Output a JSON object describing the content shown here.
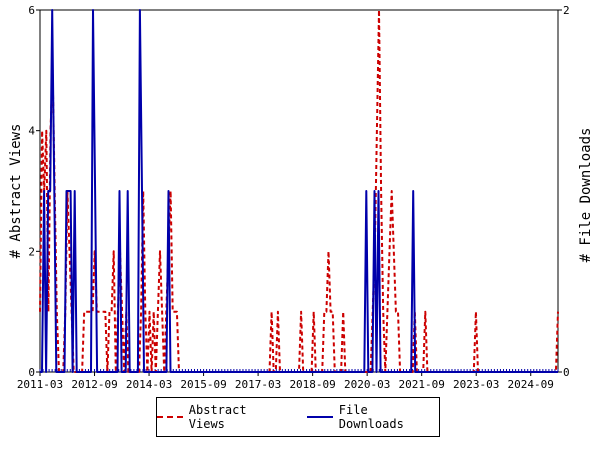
{
  "chart_data": {
    "type": "line",
    "x_tick_labels": [
      "2011-03",
      "2012-09",
      "2014-03",
      "2015-09",
      "2017-03",
      "2018-09",
      "2020-03",
      "2021-09",
      "2023-03",
      "2024-09"
    ],
    "y_left": {
      "label": "# Abstract Views",
      "range": [
        0,
        6
      ],
      "ticks": [
        "0",
        "2",
        "4",
        "6"
      ]
    },
    "y_right": {
      "label": "# File Downloads",
      "range": [
        0,
        2
      ],
      "ticks": [
        "0",
        "2"
      ]
    },
    "x_range_months": [
      "2011-03",
      "2025-06"
    ],
    "series": [
      {
        "name": "Abstract Views",
        "color": "#cc0000",
        "style": "dashed",
        "axis": "left",
        "values": [
          1,
          4,
          3,
          4,
          1,
          4,
          5,
          3,
          1,
          0,
          0,
          0,
          1,
          3,
          2,
          1,
          0,
          0,
          0,
          0,
          0,
          1,
          1,
          1,
          1,
          1,
          2,
          1,
          1,
          1,
          1,
          1,
          0,
          1,
          1,
          2,
          0,
          1,
          2,
          1,
          0,
          1,
          0,
          0,
          0,
          0,
          0,
          0,
          1,
          3,
          1,
          0,
          1,
          0,
          1,
          0,
          1,
          2,
          1,
          0,
          1,
          2,
          3,
          1,
          1,
          1,
          0,
          0,
          0,
          0,
          0,
          0,
          0,
          0,
          0,
          0,
          0,
          0,
          0,
          0,
          0,
          0,
          0,
          0,
          0,
          0,
          0,
          0,
          0,
          0,
          0,
          0,
          0,
          0,
          0,
          0,
          0,
          0,
          0,
          0,
          0,
          0,
          0,
          0,
          0,
          0,
          0,
          0,
          0,
          0,
          1,
          0,
          0,
          1,
          0,
          0,
          0,
          0,
          0,
          0,
          0,
          0,
          0,
          0,
          1,
          0,
          0,
          0,
          0,
          0,
          1,
          0,
          0,
          0,
          0,
          1,
          1,
          2,
          1,
          1,
          0,
          0,
          0,
          0,
          1,
          0,
          0,
          0,
          0,
          0,
          0,
          0,
          0,
          0,
          0,
          0,
          0,
          0,
          1,
          2,
          4,
          6,
          3,
          1,
          0,
          1,
          2,
          3,
          2,
          1,
          1,
          0,
          0,
          0,
          0,
          0,
          0,
          0,
          1,
          0,
          0,
          0,
          0,
          1,
          0,
          0,
          0,
          0,
          0,
          0,
          0,
          0,
          0,
          0,
          0,
          0,
          0,
          0,
          0,
          0,
          0,
          0,
          0,
          0,
          0,
          0,
          0,
          1,
          0,
          0,
          0,
          0,
          0,
          0,
          0,
          0,
          0,
          0,
          0,
          0,
          0,
          0,
          0,
          0,
          0,
          0,
          0,
          0,
          0,
          0,
          0,
          0,
          0,
          0,
          0,
          0,
          0,
          0,
          0,
          0,
          0,
          0,
          0,
          0,
          0,
          0,
          1
        ]
      },
      {
        "name": "File Downloads",
        "color": "#0000aa",
        "style": "solid",
        "axis": "right",
        "values": [
          0,
          0,
          1,
          0,
          1,
          1,
          2,
          1,
          0,
          0,
          0,
          0,
          0,
          1,
          1,
          1,
          0,
          1,
          0,
          0,
          0,
          0,
          0,
          0,
          0,
          0,
          2,
          1,
          0,
          0,
          0,
          0,
          0,
          0,
          0,
          0,
          0,
          0,
          0,
          1,
          0,
          0,
          0,
          1,
          0,
          0,
          0,
          0,
          0,
          2,
          1,
          0,
          0,
          0,
          0,
          0,
          0,
          0,
          0,
          0,
          0,
          0,
          0,
          1,
          0,
          0,
          0,
          0,
          0,
          0,
          0,
          0,
          0,
          0,
          0,
          0,
          0,
          0,
          0,
          0,
          0,
          0,
          0,
          0,
          0,
          0,
          0,
          0,
          0,
          0,
          0,
          0,
          0,
          0,
          0,
          0,
          0,
          0,
          0,
          0,
          0,
          0,
          0,
          0,
          0,
          0,
          0,
          0,
          0,
          0,
          0,
          0,
          0,
          0,
          0,
          0,
          0,
          0,
          0,
          0,
          0,
          0,
          0,
          0,
          0,
          0,
          0,
          0,
          0,
          0,
          0,
          0,
          0,
          0,
          0,
          0,
          0,
          0,
          0,
          0,
          0,
          0,
          0,
          0,
          0,
          0,
          0,
          0,
          0,
          0,
          0,
          0,
          0,
          0,
          0,
          0,
          0,
          0,
          0,
          0,
          1,
          0,
          0,
          0,
          1,
          0,
          1,
          0,
          0,
          0,
          0,
          0,
          0,
          0,
          0,
          0,
          0,
          0,
          0,
          0,
          0,
          0,
          0,
          1,
          0,
          0,
          0,
          0,
          0,
          0,
          0,
          0,
          0,
          0,
          0,
          0,
          0,
          0,
          0,
          0,
          0,
          0,
          0,
          0,
          0,
          0,
          0,
          0,
          0,
          0,
          0,
          0,
          0,
          0,
          0,
          0,
          0,
          0,
          0,
          0,
          0,
          0,
          0,
          0,
          0,
          0,
          0,
          0,
          0,
          0,
          0,
          0,
          0,
          0,
          0,
          0,
          0,
          0,
          0,
          0,
          0,
          0,
          0,
          0,
          0,
          0,
          0,
          0,
          0,
          0,
          0,
          0,
          0,
          0,
          0
        ]
      }
    ],
    "grid": false,
    "legend": "bottom"
  }
}
